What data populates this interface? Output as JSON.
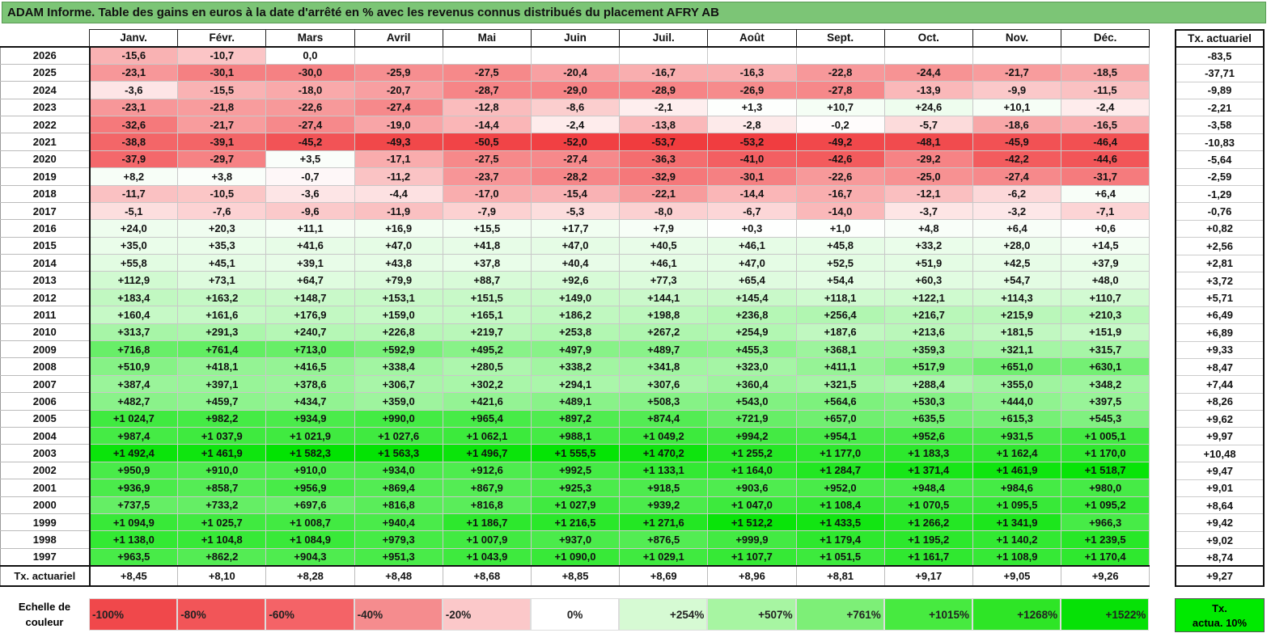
{
  "title": "ADAM Informe. Table des gains en euros à la date d'arrêté en % avec les revenus connus distribués du placement AFRY AB",
  "months": [
    "Janv.",
    "Févr.",
    "Mars",
    "Avril",
    "Mai",
    "Juin",
    "Juil.",
    "Août",
    "Sept.",
    "Oct.",
    "Nov.",
    "Déc."
  ],
  "side_header": "Tx. actuariel",
  "rows": [
    {
      "year": "2026",
      "values": [
        "-15,6",
        "-10,7",
        "0,0",
        "",
        "",
        "",
        "",
        "",
        "",
        "",
        "",
        ""
      ],
      "tx": "-83,5"
    },
    {
      "year": "2025",
      "values": [
        "-23,1",
        "-30,1",
        "-30,0",
        "-25,9",
        "-27,5",
        "-20,4",
        "-16,7",
        "-16,3",
        "-22,8",
        "-24,4",
        "-21,7",
        "-18,5"
      ],
      "tx": "-37,71"
    },
    {
      "year": "2024",
      "values": [
        "-3,6",
        "-15,5",
        "-18,0",
        "-20,7",
        "-28,7",
        "-29,0",
        "-28,9",
        "-26,9",
        "-27,8",
        "-13,9",
        "-9,9",
        "-11,5"
      ],
      "tx": "-9,89"
    },
    {
      "year": "2023",
      "values": [
        "-23,1",
        "-21,8",
        "-22,6",
        "-27,4",
        "-12,8",
        "-8,6",
        "-2,1",
        "+1,3",
        "+10,7",
        "+24,6",
        "+10,1",
        "-2,4"
      ],
      "tx": "-2,21"
    },
    {
      "year": "2022",
      "values": [
        "-32,6",
        "-21,7",
        "-27,4",
        "-19,0",
        "-14,4",
        "-2,4",
        "-13,8",
        "-2,8",
        "-0,2",
        "-5,7",
        "-18,6",
        "-16,5"
      ],
      "tx": "-3,58"
    },
    {
      "year": "2021",
      "values": [
        "-38,8",
        "-39,1",
        "-45,2",
        "-49,3",
        "-50,5",
        "-52,0",
        "-53,7",
        "-53,2",
        "-49,2",
        "-48,1",
        "-45,9",
        "-46,4"
      ],
      "tx": "-10,83"
    },
    {
      "year": "2020",
      "values": [
        "-37,9",
        "-29,7",
        "+3,5",
        "-17,1",
        "-27,5",
        "-27,4",
        "-36,3",
        "-41,0",
        "-42,6",
        "-29,2",
        "-42,2",
        "-44,6"
      ],
      "tx": "-5,64"
    },
    {
      "year": "2019",
      "values": [
        "+8,2",
        "+3,8",
        "-0,7",
        "-11,2",
        "-23,7",
        "-28,2",
        "-32,9",
        "-30,1",
        "-22,6",
        "-25,0",
        "-27,4",
        "-31,7"
      ],
      "tx": "-2,59"
    },
    {
      "year": "2018",
      "values": [
        "-11,7",
        "-10,5",
        "-3,6",
        "-4,4",
        "-17,0",
        "-15,4",
        "-22,1",
        "-14,4",
        "-16,7",
        "-12,1",
        "-6,2",
        "+6,4"
      ],
      "tx": "-1,29"
    },
    {
      "year": "2017",
      "values": [
        "-5,1",
        "-7,6",
        "-9,6",
        "-11,9",
        "-7,9",
        "-5,3",
        "-8,0",
        "-6,7",
        "-14,0",
        "-3,7",
        "-3,2",
        "-7,1"
      ],
      "tx": "-0,76"
    },
    {
      "year": "2016",
      "values": [
        "+24,0",
        "+20,3",
        "+11,1",
        "+16,9",
        "+15,5",
        "+17,7",
        "+7,9",
        "+0,3",
        "+1,0",
        "+4,8",
        "+6,4",
        "+0,6"
      ],
      "tx": "+0,82"
    },
    {
      "year": "2015",
      "values": [
        "+35,0",
        "+35,3",
        "+41,6",
        "+47,0",
        "+41,8",
        "+47,0",
        "+40,5",
        "+46,1",
        "+45,8",
        "+33,2",
        "+28,0",
        "+14,5"
      ],
      "tx": "+2,56"
    },
    {
      "year": "2014",
      "values": [
        "+55,8",
        "+45,1",
        "+39,1",
        "+43,8",
        "+37,8",
        "+40,4",
        "+46,1",
        "+47,0",
        "+52,5",
        "+51,9",
        "+42,5",
        "+37,9"
      ],
      "tx": "+2,81"
    },
    {
      "year": "2013",
      "values": [
        "+112,9",
        "+73,1",
        "+64,7",
        "+79,9",
        "+88,7",
        "+92,6",
        "+77,3",
        "+65,4",
        "+54,4",
        "+60,3",
        "+54,7",
        "+48,0"
      ],
      "tx": "+3,72"
    },
    {
      "year": "2012",
      "values": [
        "+183,4",
        "+163,2",
        "+148,7",
        "+153,1",
        "+151,5",
        "+149,0",
        "+144,1",
        "+145,4",
        "+118,1",
        "+122,1",
        "+114,3",
        "+110,7"
      ],
      "tx": "+5,71"
    },
    {
      "year": "2011",
      "values": [
        "+160,4",
        "+161,6",
        "+176,9",
        "+159,0",
        "+165,1",
        "+186,2",
        "+198,8",
        "+236,8",
        "+256,4",
        "+216,7",
        "+215,9",
        "+210,3"
      ],
      "tx": "+6,49"
    },
    {
      "year": "2010",
      "values": [
        "+313,7",
        "+291,3",
        "+240,7",
        "+226,8",
        "+219,7",
        "+253,8",
        "+267,2",
        "+254,9",
        "+187,6",
        "+213,6",
        "+181,5",
        "+151,9"
      ],
      "tx": "+6,89"
    },
    {
      "year": "2009",
      "values": [
        "+716,8",
        "+761,4",
        "+713,0",
        "+592,9",
        "+495,2",
        "+497,9",
        "+489,7",
        "+455,3",
        "+368,1",
        "+359,3",
        "+321,1",
        "+315,7"
      ],
      "tx": "+9,33"
    },
    {
      "year": "2008",
      "values": [
        "+510,9",
        "+418,1",
        "+416,5",
        "+338,4",
        "+280,5",
        "+338,2",
        "+341,8",
        "+323,0",
        "+411,1",
        "+517,9",
        "+651,0",
        "+630,1"
      ],
      "tx": "+8,47"
    },
    {
      "year": "2007",
      "values": [
        "+387,4",
        "+397,1",
        "+378,6",
        "+306,7",
        "+302,2",
        "+294,1",
        "+307,6",
        "+360,4",
        "+321,5",
        "+288,4",
        "+355,0",
        "+348,2"
      ],
      "tx": "+7,44"
    },
    {
      "year": "2006",
      "values": [
        "+482,7",
        "+459,7",
        "+434,7",
        "+359,0",
        "+421,6",
        "+489,1",
        "+508,3",
        "+543,0",
        "+564,6",
        "+530,3",
        "+444,0",
        "+397,5"
      ],
      "tx": "+8,26"
    },
    {
      "year": "2005",
      "values": [
        "+1 024,7",
        "+982,2",
        "+934,9",
        "+990,0",
        "+965,4",
        "+897,2",
        "+874,4",
        "+721,9",
        "+657,0",
        "+635,5",
        "+615,3",
        "+545,3"
      ],
      "tx": "+9,62"
    },
    {
      "year": "2004",
      "values": [
        "+987,4",
        "+1 037,9",
        "+1 021,9",
        "+1 027,6",
        "+1 062,1",
        "+988,1",
        "+1 049,2",
        "+994,2",
        "+954,1",
        "+952,6",
        "+931,5",
        "+1 005,1"
      ],
      "tx": "+9,97"
    },
    {
      "year": "2003",
      "values": [
        "+1 492,4",
        "+1 461,9",
        "+1 582,3",
        "+1 563,3",
        "+1 496,7",
        "+1 555,5",
        "+1 470,2",
        "+1 255,2",
        "+1 177,0",
        "+1 183,3",
        "+1 162,4",
        "+1 170,0"
      ],
      "tx": "+10,48"
    },
    {
      "year": "2002",
      "values": [
        "+950,9",
        "+910,0",
        "+910,0",
        "+934,0",
        "+912,6",
        "+992,5",
        "+1 133,1",
        "+1 164,0",
        "+1 284,7",
        "+1 371,4",
        "+1 461,9",
        "+1 518,7"
      ],
      "tx": "+9,47"
    },
    {
      "year": "2001",
      "values": [
        "+936,9",
        "+858,7",
        "+956,9",
        "+869,4",
        "+867,9",
        "+925,3",
        "+918,5",
        "+903,6",
        "+952,0",
        "+948,4",
        "+984,6",
        "+980,0"
      ],
      "tx": "+9,01"
    },
    {
      "year": "2000",
      "values": [
        "+737,5",
        "+733,2",
        "+697,6",
        "+816,8",
        "+816,8",
        "+1 027,9",
        "+939,2",
        "+1 047,0",
        "+1 108,4",
        "+1 070,5",
        "+1 095,5",
        "+1 095,2"
      ],
      "tx": "+8,64"
    },
    {
      "year": "1999",
      "values": [
        "+1 094,9",
        "+1 025,7",
        "+1 008,7",
        "+940,4",
        "+1 186,7",
        "+1 216,5",
        "+1 271,6",
        "+1 512,2",
        "+1 433,5",
        "+1 266,2",
        "+1 341,9",
        "+966,3"
      ],
      "tx": "+9,42"
    },
    {
      "year": "1998",
      "values": [
        "+1 138,0",
        "+1 104,8",
        "+1 084,9",
        "+979,3",
        "+1 007,9",
        "+937,0",
        "+876,5",
        "+999,9",
        "+1 179,4",
        "+1 195,2",
        "+1 140,2",
        "+1 239,5"
      ],
      "tx": "+9,02"
    },
    {
      "year": "1997",
      "values": [
        "+963,5",
        "+862,2",
        "+904,3",
        "+951,3",
        "+1 043,9",
        "+1 090,0",
        "+1 029,1",
        "+1 107,7",
        "+1 051,5",
        "+1 161,7",
        "+1 108,9",
        "+1 170,4"
      ],
      "tx": "+8,74"
    }
  ],
  "total_row": {
    "label": "Tx. actuariel",
    "values": [
      "+8,45",
      "+8,10",
      "+8,28",
      "+8,48",
      "+8,68",
      "+8,85",
      "+8,69",
      "+8,96",
      "+8,81",
      "+9,17",
      "+9,05",
      "+9,26"
    ],
    "tx": "+9,27"
  },
  "legend": {
    "label_line1": "Echelle de",
    "label_line2": "couleur",
    "steps": [
      {
        "text": "-100%",
        "color": "#f0484b",
        "align": "left"
      },
      {
        "text": "-80%",
        "color": "#f25558",
        "align": "left"
      },
      {
        "text": "-60%",
        "color": "#f46367",
        "align": "left"
      },
      {
        "text": "-40%",
        "color": "#f58c8e",
        "align": "left"
      },
      {
        "text": "-20%",
        "color": "#fbc8c9",
        "align": "left"
      },
      {
        "text": "0%",
        "color": "#ffffff",
        "align": "center"
      },
      {
        "text": "+254%",
        "color": "#d6fad3",
        "align": "right"
      },
      {
        "text": "+507%",
        "color": "#a7f5a2",
        "align": "right"
      },
      {
        "text": "+761%",
        "color": "#7def77",
        "align": "right"
      },
      {
        "text": "+1015%",
        "color": "#47ea40",
        "align": "right"
      },
      {
        "text": "+1268%",
        "color": "#2ee526",
        "align": "right"
      },
      {
        "text": "+1522%",
        "color": "#06e106",
        "align": "right"
      }
    ],
    "side_line1": "Tx.",
    "side_line2": "actua. 10%"
  },
  "colors": {
    "title_bg": "#7cc576",
    "neg_max": "#f0383b",
    "pos_max": "#00e300"
  }
}
